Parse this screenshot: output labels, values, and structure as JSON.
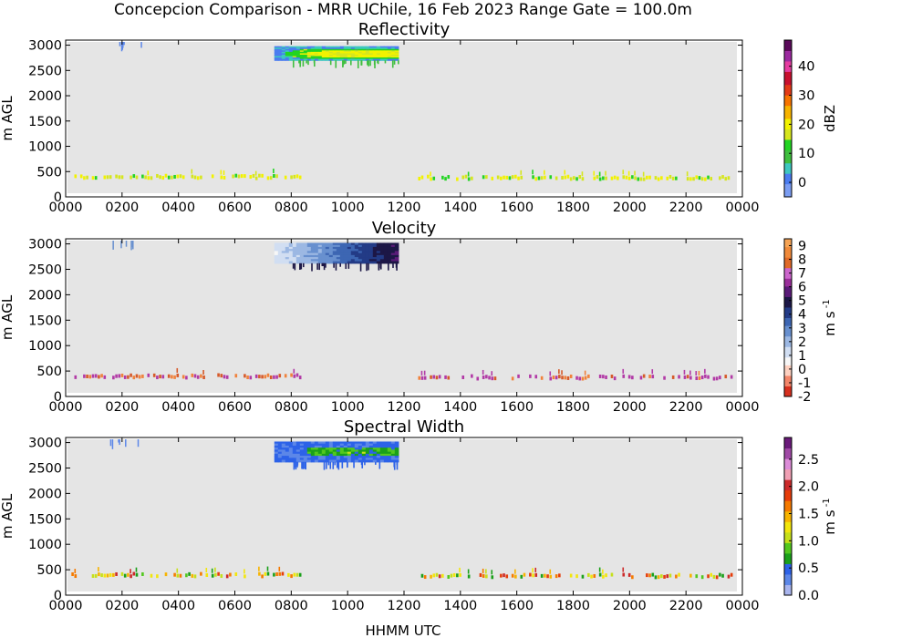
{
  "figure": {
    "suptitle": "Concepcion Comparison - MRR UChile, 16 Feb 2023 Range Gate = 100.0m",
    "xlabel": "HHMM UTC"
  },
  "chart_data": [
    {
      "type": "heatmap",
      "title": "Reflectivity",
      "ylabel": "m AGL",
      "xlim": [
        0,
        2400
      ],
      "ylim": [
        0,
        3100
      ],
      "x_ticks": [
        "0000",
        "0200",
        "0400",
        "0600",
        "0800",
        "1000",
        "1200",
        "1400",
        "1600",
        "1800",
        "2000",
        "2200",
        "0000"
      ],
      "y_ticks": [
        "0",
        "500",
        "1000",
        "1500",
        "2000",
        "2500",
        "3000"
      ],
      "colorbar": {
        "label": "dBZ",
        "range": [
          -5,
          49
        ],
        "ticks": [
          "0",
          "10",
          "20",
          "30",
          "40"
        ]
      },
      "background": "#e5e5e5",
      "features": [
        {
          "x": [
            740,
            1180
          ],
          "y": [
            2700,
            2980
          ],
          "core": [
            1,
            3
          ]
        },
        {
          "x": [
            10,
            840
          ],
          "y": [
            340,
            520
          ],
          "sparse": 1
        },
        {
          "x": [
            1250,
            2370
          ],
          "y": [
            380,
            470
          ],
          "sparse": 1
        }
      ]
    },
    {
      "type": "heatmap",
      "title": "Velocity",
      "ylabel": "m s-1 ",
      "xlim": [
        0,
        2400
      ],
      "ylim": [
        0,
        3100
      ],
      "x_ticks": [
        "0000",
        "0200",
        "0400",
        "0600",
        "0800",
        "1000",
        "1200",
        "1400",
        "1600",
        "1800",
        "2000",
        "2200",
        "0000"
      ],
      "y_ticks": [
        "0",
        "500",
        "1000",
        "1500",
        "2000",
        "2500",
        "3000"
      ],
      "colorbar": {
        "label": "m s",
        "range": [
          -2,
          9.5
        ],
        "ticks": [
          "-2",
          "-1",
          "0",
          "1",
          "2",
          "3",
          "4",
          "5",
          "6",
          "7",
          "8",
          "9"
        ]
      },
      "background": "#e5e5e5",
      "features": [
        {
          "x": [
            740,
            1180
          ],
          "y": [
            2620,
            3020
          ],
          "gradient": [
            1.2,
            3.8
          ]
        },
        {
          "x": [
            10,
            840
          ],
          "y": [
            340,
            520
          ],
          "sparse": 1
        },
        {
          "x": [
            1250,
            2370
          ],
          "y": [
            380,
            470
          ],
          "sparse": 1
        }
      ]
    },
    {
      "type": "heatmap",
      "title": "Spectral Width",
      "ylabel": "m AGL",
      "xlim": [
        0,
        2400
      ],
      "ylim": [
        0,
        3100
      ],
      "x_ticks": [
        "0000",
        "0200",
        "0400",
        "0600",
        "0800",
        "1000",
        "1200",
        "1400",
        "1600",
        "1800",
        "2000",
        "2200",
        "0000"
      ],
      "y_ticks": [
        "0",
        "500",
        "1000",
        "1500",
        "2000",
        "2500",
        "3000"
      ],
      "colorbar": {
        "label": "m s",
        "range": [
          0,
          2.9
        ],
        "ticks": [
          "0.0",
          "0.5",
          "1.0",
          "1.5",
          "2.0",
          "2.5"
        ]
      },
      "background": "#e5e5e5",
      "features": [
        {
          "x": [
            740,
            1180
          ],
          "y": [
            2620,
            3020
          ],
          "core": [
            0.3,
            0.8
          ]
        },
        {
          "x": [
            10,
            840
          ],
          "y": [
            340,
            520
          ],
          "sparse": 1
        },
        {
          "x": [
            1250,
            2370
          ],
          "y": [
            380,
            470
          ],
          "sparse": 1
        }
      ]
    }
  ]
}
